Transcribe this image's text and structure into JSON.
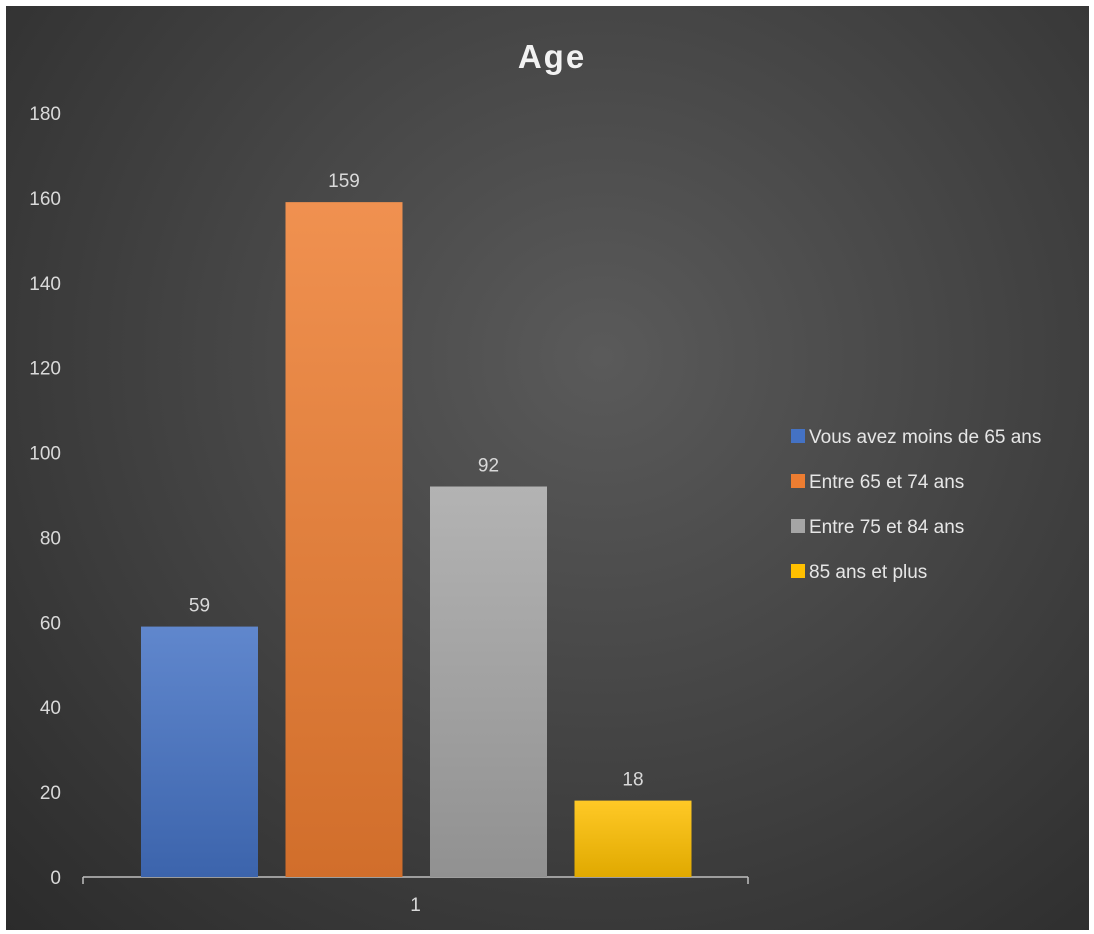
{
  "chart_data": {
    "type": "bar",
    "title": "Age",
    "xlabel": "",
    "ylabel": "",
    "categories": [
      "1"
    ],
    "ylim": [
      0,
      180
    ],
    "yticks": [
      0,
      20,
      40,
      60,
      80,
      100,
      120,
      140,
      160,
      180
    ],
    "grid": false,
    "legend_position": "right",
    "series": [
      {
        "name": "Vous avez moins de 65 ans",
        "values": [
          59
        ],
        "color": "#4472c4"
      },
      {
        "name": "Entre 65 et 74 ans",
        "values": [
          159
        ],
        "color": "#ed7d31"
      },
      {
        "name": "Entre 75 et 84 ans",
        "values": [
          92
        ],
        "color": "#a5a5a5"
      },
      {
        "name": "85 ans et plus",
        "values": [
          18
        ],
        "color": "#ffc000"
      }
    ]
  }
}
